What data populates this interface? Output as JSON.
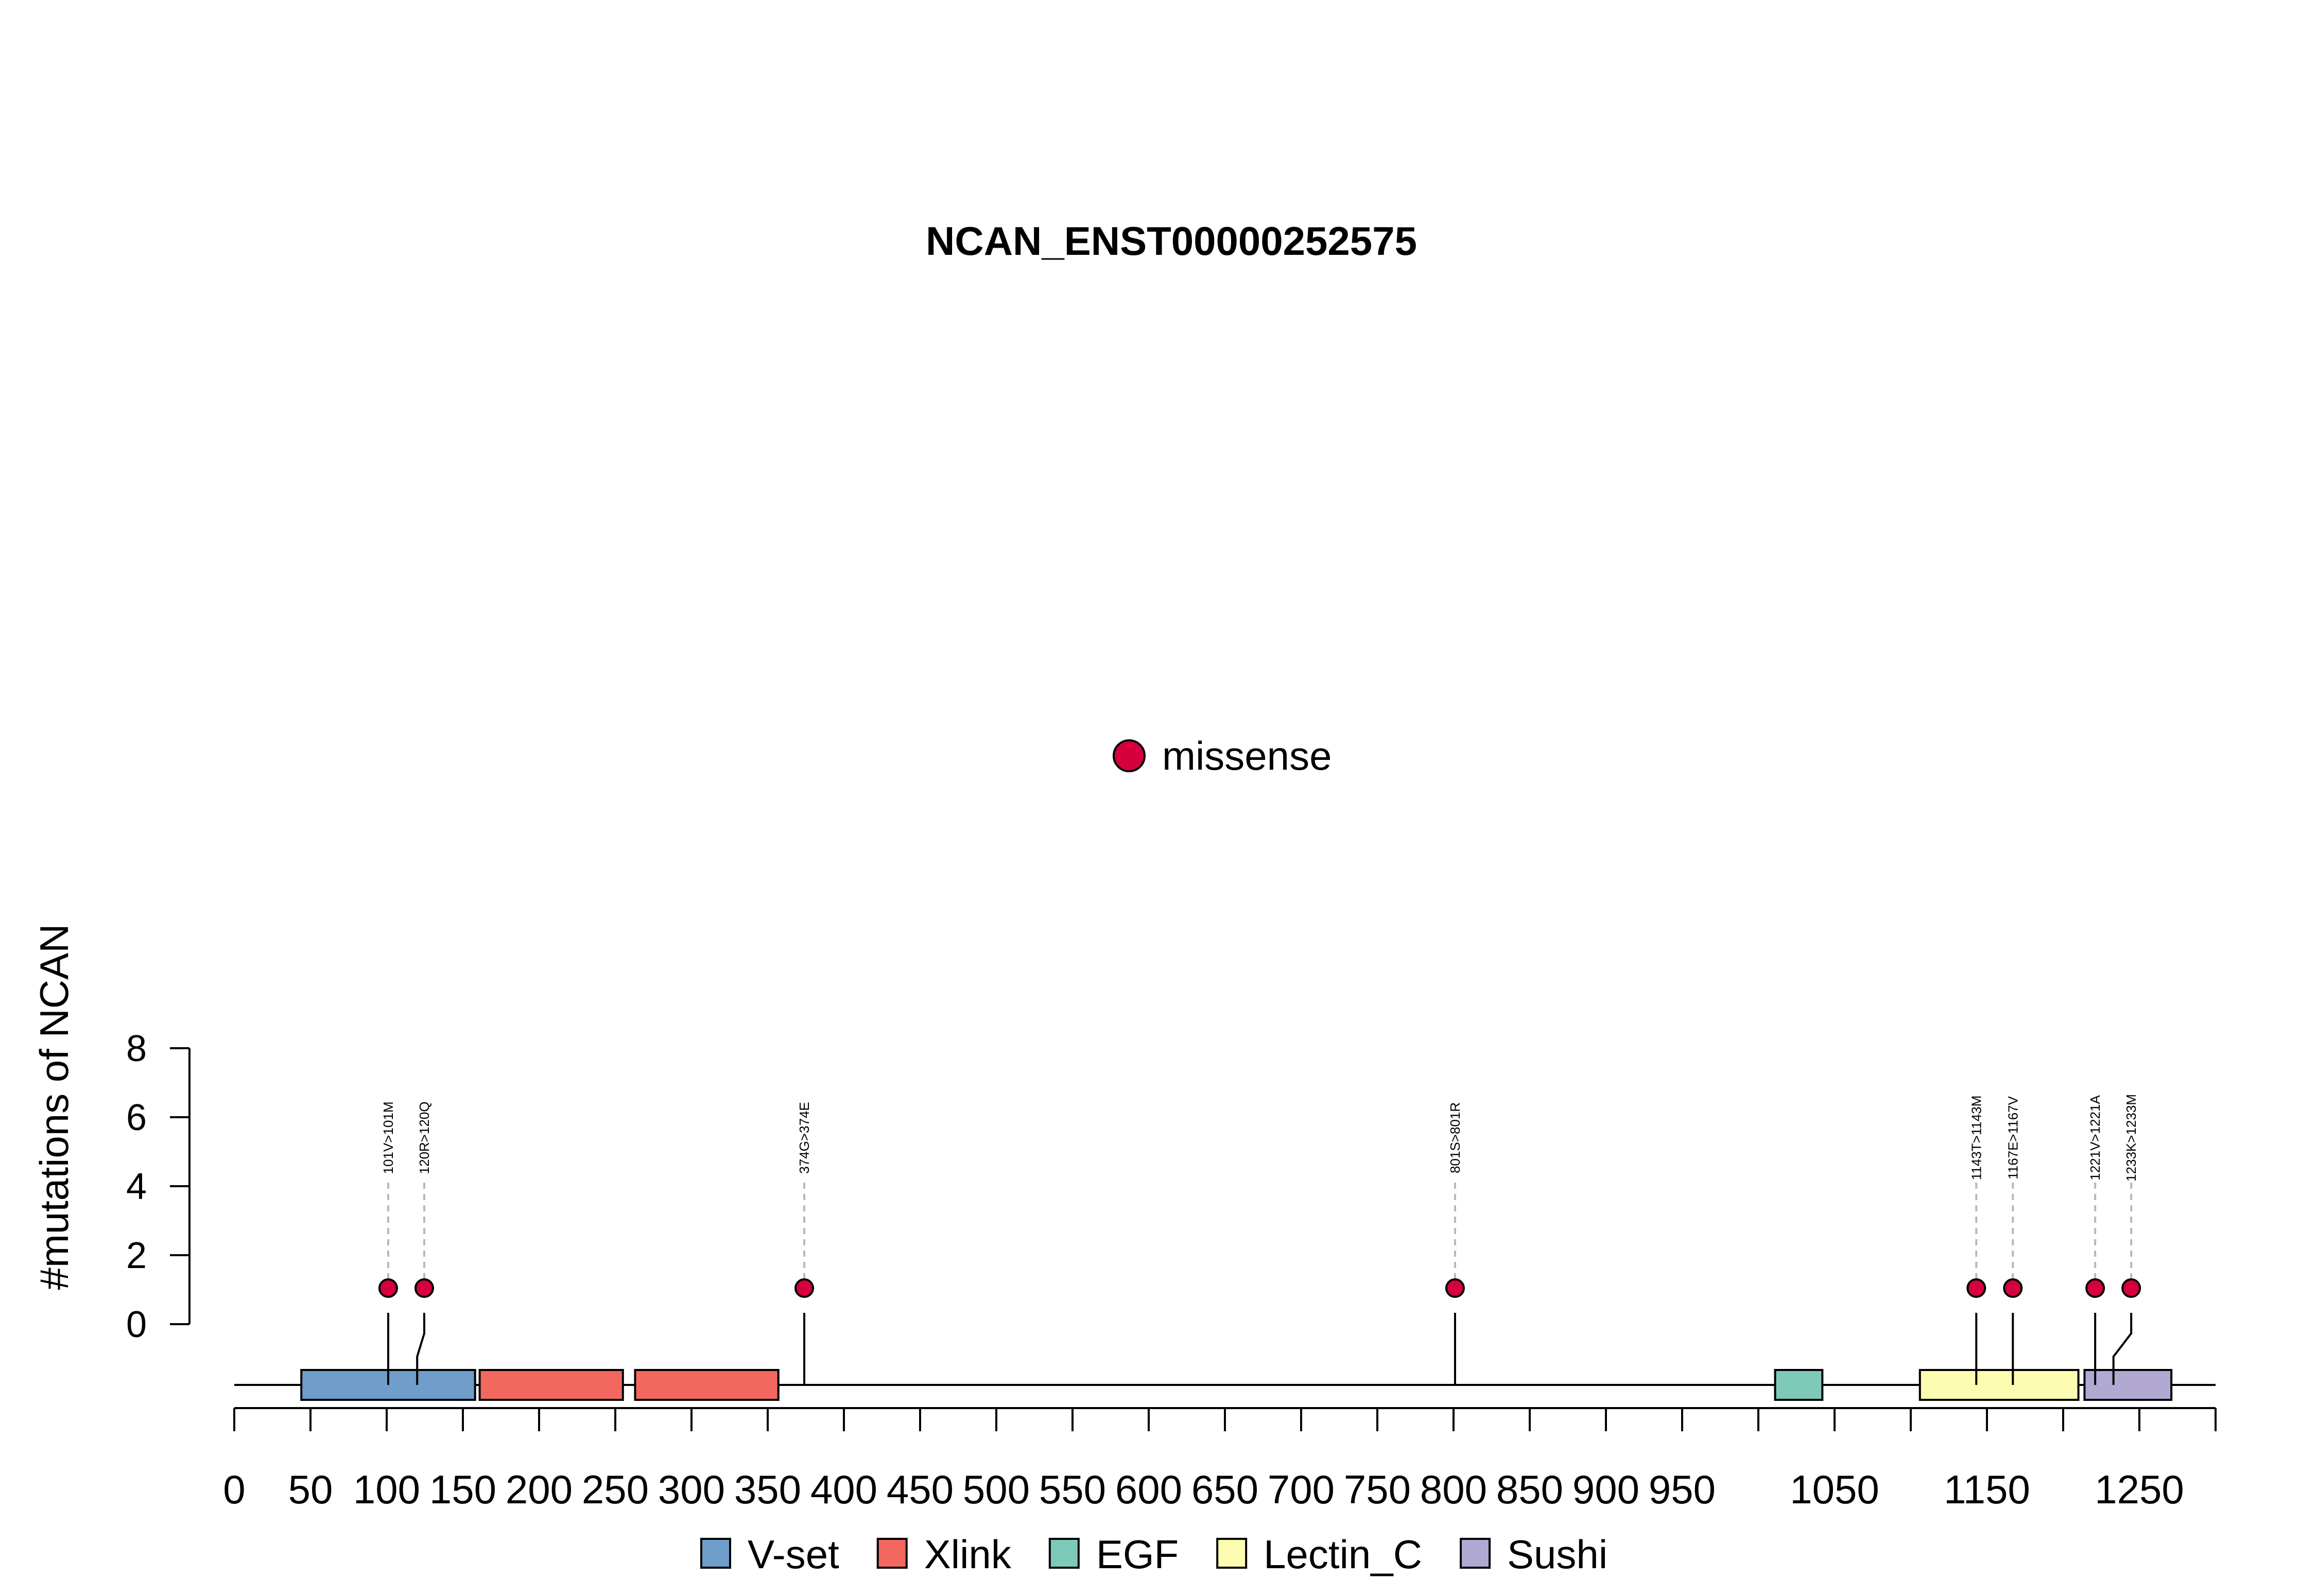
{
  "chart_data": {
    "type": "lollipop",
    "title": "NCAN_ENST00000252575",
    "ylabel": "#mutations of NCAN",
    "y_ticks": [
      "0",
      "2",
      "4",
      "6",
      "8"
    ],
    "ylim": [
      0,
      8
    ],
    "x_ticks": [
      "0",
      "50",
      "100",
      "150",
      "200",
      "250",
      "300",
      "350",
      "400",
      "450",
      "500",
      "550",
      "600",
      "650",
      "700",
      "750",
      "800",
      "850",
      "900",
      "950",
      "1050",
      "1150",
      "1250"
    ],
    "xlim": [
      0,
      1300
    ],
    "mutation_type_legend": {
      "label": "missense",
      "color": "#d6003f"
    },
    "mutations": [
      {
        "position": 101,
        "count": 1,
        "label": "101V>101M"
      },
      {
        "position": 120,
        "count": 1,
        "label": "120R>120Q"
      },
      {
        "position": 374,
        "count": 1,
        "label": "374G>374E"
      },
      {
        "position": 801,
        "count": 1,
        "label": "801S>801R"
      },
      {
        "position": 1143,
        "count": 1,
        "label": "1143T>1143M"
      },
      {
        "position": 1167,
        "count": 1,
        "label": "1167E>1167V"
      },
      {
        "position": 1221,
        "count": 1,
        "label": "1221V>1221A"
      },
      {
        "position": 1233,
        "count": 1,
        "label": "1233K>1233M"
      }
    ],
    "domains": [
      {
        "name": "V-set",
        "start": 44,
        "end": 158,
        "color": "#6e9ec9"
      },
      {
        "name": "Xlink",
        "start": 161,
        "end": 255,
        "color": "#f2685f"
      },
      {
        "name": "Xlink",
        "start": 263,
        "end": 357,
        "color": "#f2685f"
      },
      {
        "name": "EGF",
        "start": 1011,
        "end": 1042,
        "color": "#7ecab9"
      },
      {
        "name": "Lectin_C",
        "start": 1106,
        "end": 1210,
        "color": "#fdfdb1"
      },
      {
        "name": "Sushi",
        "start": 1214,
        "end": 1271,
        "color": "#b1a9d1"
      }
    ],
    "domain_legend": [
      {
        "name": "V-set",
        "color": "#6e9ec9"
      },
      {
        "name": "Xlink",
        "color": "#f2685f"
      },
      {
        "name": "EGF",
        "color": "#7ecab9"
      },
      {
        "name": "Lectin_C",
        "color": "#fdfdb1"
      },
      {
        "name": "Sushi",
        "color": "#b1a9d1"
      }
    ]
  }
}
